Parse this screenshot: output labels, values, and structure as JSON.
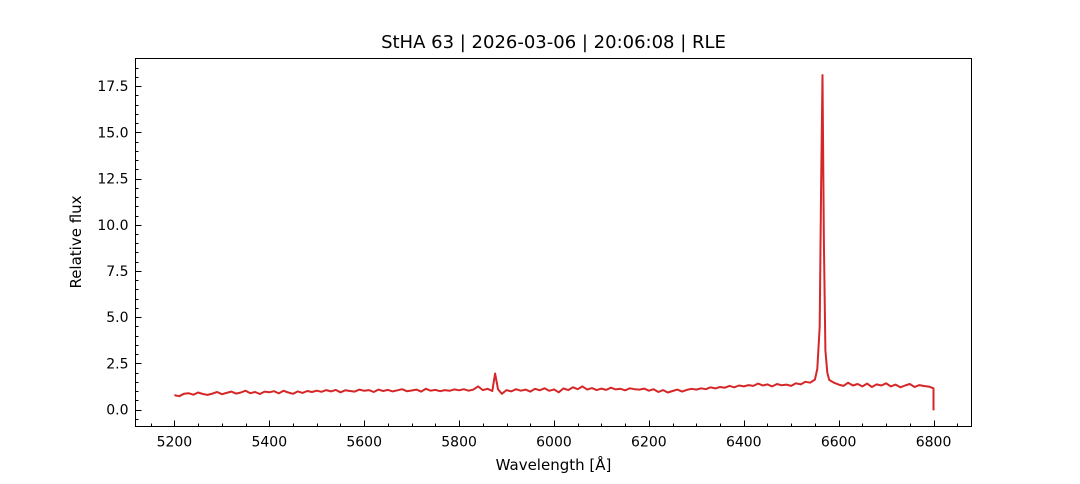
{
  "chart_data": {
    "type": "line",
    "title": "StHA 63 | 2026-03-06 | 20:06:08 | RLE",
    "xlabel": "Wavelength [Å]",
    "ylabel": "Relative flux",
    "xlim": [
      5118,
      6880
    ],
    "ylim": [
      -0.92,
      19.0
    ],
    "xticks": [
      5200,
      5400,
      5600,
      5800,
      6000,
      6200,
      6400,
      6600,
      6800
    ],
    "xtick_labels": [
      "5200",
      "5400",
      "5600",
      "5800",
      "6000",
      "6200",
      "6400",
      "6600",
      "6800"
    ],
    "yticks": [
      0,
      2.5,
      5,
      7.5,
      10,
      12.5,
      15,
      17.5
    ],
    "ytick_labels": [
      "0.0",
      "2.5",
      "5.0",
      "7.5",
      "10.0",
      "12.5",
      "15.0",
      "17.5"
    ],
    "grid": false,
    "series": [
      {
        "color": "#d62728",
        "points": [
          [
            5200,
            0.78
          ],
          [
            5210,
            0.72
          ],
          [
            5220,
            0.85
          ],
          [
            5230,
            0.88
          ],
          [
            5240,
            0.8
          ],
          [
            5250,
            0.92
          ],
          [
            5260,
            0.84
          ],
          [
            5270,
            0.79
          ],
          [
            5280,
            0.86
          ],
          [
            5290,
            0.95
          ],
          [
            5300,
            0.83
          ],
          [
            5310,
            0.9
          ],
          [
            5320,
            0.97
          ],
          [
            5330,
            0.86
          ],
          [
            5340,
            0.92
          ],
          [
            5350,
            1.02
          ],
          [
            5360,
            0.88
          ],
          [
            5370,
            0.95
          ],
          [
            5380,
            0.84
          ],
          [
            5390,
            0.97
          ],
          [
            5400,
            0.93
          ],
          [
            5410,
            0.99
          ],
          [
            5420,
            0.87
          ],
          [
            5430,
            1.01
          ],
          [
            5440,
            0.92
          ],
          [
            5450,
            0.85
          ],
          [
            5460,
            0.98
          ],
          [
            5470,
            0.9
          ],
          [
            5480,
            1.0
          ],
          [
            5490,
            0.95
          ],
          [
            5500,
            1.02
          ],
          [
            5510,
            0.96
          ],
          [
            5520,
            1.05
          ],
          [
            5530,
            0.98
          ],
          [
            5540,
            1.06
          ],
          [
            5550,
            0.93
          ],
          [
            5560,
            1.04
          ],
          [
            5570,
            1.0
          ],
          [
            5580,
            0.97
          ],
          [
            5590,
            1.08
          ],
          [
            5600,
            1.01
          ],
          [
            5610,
            1.05
          ],
          [
            5620,
            0.95
          ],
          [
            5630,
            1.08
          ],
          [
            5640,
            1.0
          ],
          [
            5650,
            1.06
          ],
          [
            5660,
            0.98
          ],
          [
            5670,
            1.04
          ],
          [
            5680,
            1.1
          ],
          [
            5690,
            0.99
          ],
          [
            5700,
            1.03
          ],
          [
            5710,
            1.08
          ],
          [
            5720,
            0.97
          ],
          [
            5730,
            1.12
          ],
          [
            5740,
            1.02
          ],
          [
            5750,
            1.06
          ],
          [
            5760,
            0.99
          ],
          [
            5770,
            1.05
          ],
          [
            5780,
            1.01
          ],
          [
            5790,
            1.09
          ],
          [
            5800,
            1.04
          ],
          [
            5810,
            1.1
          ],
          [
            5820,
            1.02
          ],
          [
            5830,
            1.08
          ],
          [
            5840,
            1.25
          ],
          [
            5850,
            1.05
          ],
          [
            5860,
            1.12
          ],
          [
            5870,
            1.0
          ],
          [
            5876,
            1.95
          ],
          [
            5882,
            1.1
          ],
          [
            5890,
            0.85
          ],
          [
            5900,
            1.05
          ],
          [
            5910,
            0.98
          ],
          [
            5920,
            1.1
          ],
          [
            5930,
            1.02
          ],
          [
            5940,
            1.08
          ],
          [
            5950,
            0.97
          ],
          [
            5960,
            1.12
          ],
          [
            5970,
            1.04
          ],
          [
            5980,
            1.15
          ],
          [
            5990,
            1.01
          ],
          [
            6000,
            1.09
          ],
          [
            6010,
            0.93
          ],
          [
            6020,
            1.14
          ],
          [
            6030,
            1.05
          ],
          [
            6040,
            1.2
          ],
          [
            6050,
            1.1
          ],
          [
            6060,
            1.25
          ],
          [
            6070,
            1.08
          ],
          [
            6080,
            1.16
          ],
          [
            6090,
            1.05
          ],
          [
            6100,
            1.13
          ],
          [
            6110,
            1.06
          ],
          [
            6120,
            1.18
          ],
          [
            6130,
            1.09
          ],
          [
            6140,
            1.12
          ],
          [
            6150,
            1.04
          ],
          [
            6160,
            1.15
          ],
          [
            6170,
            1.1
          ],
          [
            6180,
            1.08
          ],
          [
            6190,
            1.13
          ],
          [
            6200,
            1.02
          ],
          [
            6210,
            1.1
          ],
          [
            6220,
            0.95
          ],
          [
            6230,
            1.05
          ],
          [
            6240,
            0.92
          ],
          [
            6250,
            1.0
          ],
          [
            6260,
            1.08
          ],
          [
            6270,
            0.97
          ],
          [
            6280,
            1.06
          ],
          [
            6290,
            1.12
          ],
          [
            6300,
            1.08
          ],
          [
            6310,
            1.15
          ],
          [
            6320,
            1.1
          ],
          [
            6330,
            1.2
          ],
          [
            6340,
            1.14
          ],
          [
            6350,
            1.22
          ],
          [
            6360,
            1.18
          ],
          [
            6370,
            1.28
          ],
          [
            6380,
            1.2
          ],
          [
            6390,
            1.3
          ],
          [
            6400,
            1.25
          ],
          [
            6410,
            1.32
          ],
          [
            6420,
            1.28
          ],
          [
            6430,
            1.4
          ],
          [
            6440,
            1.3
          ],
          [
            6450,
            1.36
          ],
          [
            6460,
            1.25
          ],
          [
            6470,
            1.38
          ],
          [
            6480,
            1.31
          ],
          [
            6490,
            1.35
          ],
          [
            6500,
            1.28
          ],
          [
            6510,
            1.42
          ],
          [
            6520,
            1.36
          ],
          [
            6530,
            1.5
          ],
          [
            6540,
            1.45
          ],
          [
            6550,
            1.62
          ],
          [
            6555,
            2.2
          ],
          [
            6560,
            4.5
          ],
          [
            6563,
            12.0
          ],
          [
            6566,
            18.1
          ],
          [
            6569,
            9.0
          ],
          [
            6572,
            3.2
          ],
          [
            6576,
            2.0
          ],
          [
            6580,
            1.6
          ],
          [
            6590,
            1.45
          ],
          [
            6600,
            1.35
          ],
          [
            6610,
            1.28
          ],
          [
            6620,
            1.45
          ],
          [
            6630,
            1.3
          ],
          [
            6640,
            1.38
          ],
          [
            6650,
            1.25
          ],
          [
            6660,
            1.4
          ],
          [
            6670,
            1.22
          ],
          [
            6680,
            1.36
          ],
          [
            6690,
            1.3
          ],
          [
            6700,
            1.42
          ],
          [
            6710,
            1.25
          ],
          [
            6720,
            1.35
          ],
          [
            6730,
            1.2
          ],
          [
            6740,
            1.3
          ],
          [
            6750,
            1.38
          ],
          [
            6760,
            1.22
          ],
          [
            6770,
            1.32
          ],
          [
            6780,
            1.27
          ],
          [
            6790,
            1.24
          ],
          [
            6800,
            1.15
          ],
          [
            6800,
            -0.05
          ]
        ]
      }
    ]
  }
}
